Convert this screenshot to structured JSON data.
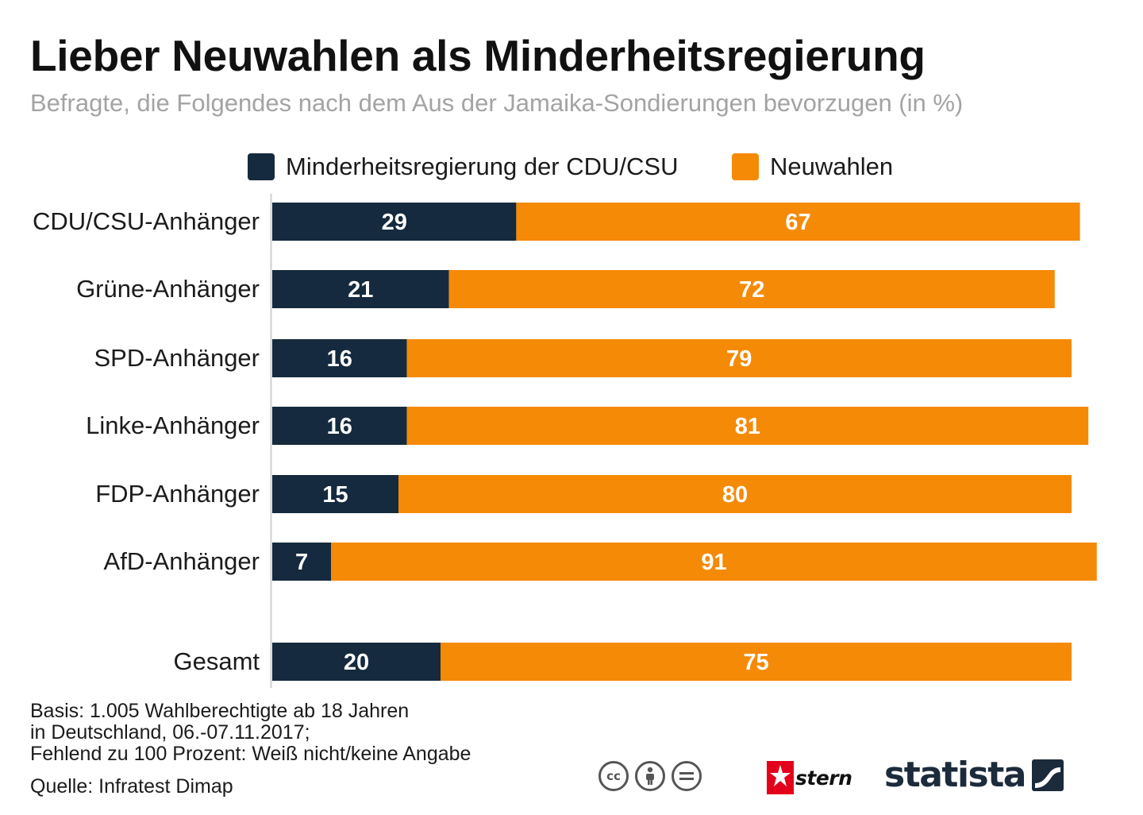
{
  "colors": {
    "minority": "#152a3e",
    "new_elections": "#f58a07",
    "axis": "#cfcfcf",
    "value_text": "#ffffff"
  },
  "header": {
    "title": "Lieber Neuwahlen als Minderheitsregierung",
    "subtitle": "Befragte, die Folgendes nach dem Aus der Jamaika-Sondierungen bevorzugen (in %)"
  },
  "legend": {
    "items": [
      {
        "label": "Minderheitsregierung der CDU/CSU",
        "color": "#152a3e"
      },
      {
        "label": "Neuwahlen",
        "color": "#f58a07"
      }
    ]
  },
  "chart_data": {
    "type": "bar",
    "orientation": "horizontal",
    "stacked": true,
    "title": "Lieber Neuwahlen als Minderheitsregierung",
    "subtitle": "Befragte, die Folgendes nach dem Aus der Jamaika-Sondierungen bevorzugen (in %)",
    "xlabel": "",
    "ylabel": "",
    "xlim": [
      0,
      100
    ],
    "grid": false,
    "legend_position": "top-center",
    "categories": [
      "CDU/CSU-Anhänger",
      "Grüne-Anhänger",
      "SPD-Anhänger",
      "Linke-Anhänger",
      "FDP-Anhänger",
      "AfD-Anhänger",
      "Gesamt"
    ],
    "series": [
      {
        "name": "Minderheitsregierung der CDU/CSU",
        "color": "#152a3e",
        "values": [
          29,
          21,
          16,
          16,
          15,
          7,
          20
        ]
      },
      {
        "name": "Neuwahlen",
        "color": "#f58a07",
        "values": [
          67,
          72,
          79,
          81,
          80,
          91,
          75
        ]
      }
    ]
  },
  "footer": {
    "notes": [
      "Basis: 1.005 Wahlberechtigte ab 18 Jahren",
      "in Deutschland, 06.-07.11.2017;",
      "Fehlend zu 100 Prozent: Weiß nicht/keine Angabe"
    ],
    "source": "Quelle: Infratest Dimap",
    "license_icons": [
      "cc-icon",
      "by-icon",
      "nd-icon"
    ],
    "logos": {
      "stern": "stern",
      "statista": "statista"
    }
  }
}
